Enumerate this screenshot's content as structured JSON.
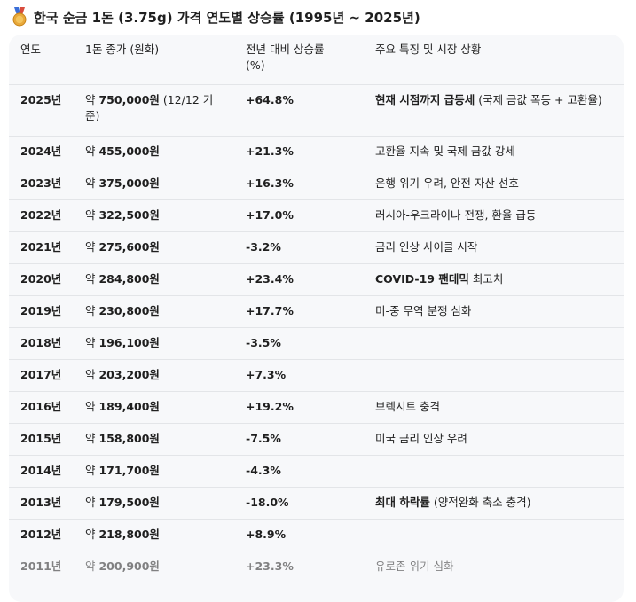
{
  "title": "한국 순금 1돈 (3.75g) 가격 연도별 상승률 (1995년 ~ 2025년)",
  "table": {
    "headers": {
      "year": "연도",
      "price": "1돈 종가 (원화)",
      "rate": "전년 대비 상승률 (%)",
      "note": "주요 특징 및 시장 상황"
    },
    "rows": [
      {
        "year": "2025년",
        "prefix": "약 ",
        "amount": "750,000원",
        "suffix": " (12/12 기준)",
        "rate": "+64.8%",
        "note_bold": "현재 시점까지 급등세",
        "note": " (국제 금값 폭등 + 고환율)"
      },
      {
        "year": "2024년",
        "prefix": "약 ",
        "amount": "455,000원",
        "suffix": "",
        "rate": "+21.3%",
        "note_bold": "",
        "note": "고환율 지속 및 국제 금값 강세"
      },
      {
        "year": "2023년",
        "prefix": "약 ",
        "amount": "375,000원",
        "suffix": "",
        "rate": "+16.3%",
        "note_bold": "",
        "note": "은행 위기 우려, 안전 자산 선호"
      },
      {
        "year": "2022년",
        "prefix": "약 ",
        "amount": "322,500원",
        "suffix": "",
        "rate": "+17.0%",
        "note_bold": "",
        "note": "러시아-우크라이나 전쟁, 환율 급등"
      },
      {
        "year": "2021년",
        "prefix": "약 ",
        "amount": "275,600원",
        "suffix": "",
        "rate": "-3.2%",
        "note_bold": "",
        "note": "금리 인상 사이클 시작"
      },
      {
        "year": "2020년",
        "prefix": "약 ",
        "amount": "284,800원",
        "suffix": "",
        "rate": "+23.4%",
        "note_bold": "COVID-19 팬데믹",
        "note": " 최고치"
      },
      {
        "year": "2019년",
        "prefix": "약 ",
        "amount": "230,800원",
        "suffix": "",
        "rate": "+17.7%",
        "note_bold": "",
        "note": "미-중 무역 분쟁 심화"
      },
      {
        "year": "2018년",
        "prefix": "약 ",
        "amount": "196,100원",
        "suffix": "",
        "rate": "-3.5%",
        "note_bold": "",
        "note": ""
      },
      {
        "year": "2017년",
        "prefix": "약 ",
        "amount": "203,200원",
        "suffix": "",
        "rate": "+7.3%",
        "note_bold": "",
        "note": ""
      },
      {
        "year": "2016년",
        "prefix": "약 ",
        "amount": "189,400원",
        "suffix": "",
        "rate": "+19.2%",
        "note_bold": "",
        "note": "브렉시트 충격"
      },
      {
        "year": "2015년",
        "prefix": "약 ",
        "amount": "158,800원",
        "suffix": "",
        "rate": "-7.5%",
        "note_bold": "",
        "note": "미국 금리 인상 우려"
      },
      {
        "year": "2014년",
        "prefix": "약 ",
        "amount": "171,700원",
        "suffix": "",
        "rate": "-4.3%",
        "note_bold": "",
        "note": ""
      },
      {
        "year": "2013년",
        "prefix": "약 ",
        "amount": "179,500원",
        "suffix": "",
        "rate": "-18.0%",
        "note_bold": "최대 하락률",
        "note": " (양적완화 축소 충격)"
      },
      {
        "year": "2012년",
        "prefix": "약 ",
        "amount": "218,800원",
        "suffix": "",
        "rate": "+8.9%",
        "note_bold": "",
        "note": ""
      },
      {
        "year": "2011년",
        "prefix": "약 ",
        "amount": "200,900원",
        "suffix": "",
        "rate": "+23.3%",
        "note_bold": "",
        "note": "유로존 위기 심화"
      }
    ]
  }
}
